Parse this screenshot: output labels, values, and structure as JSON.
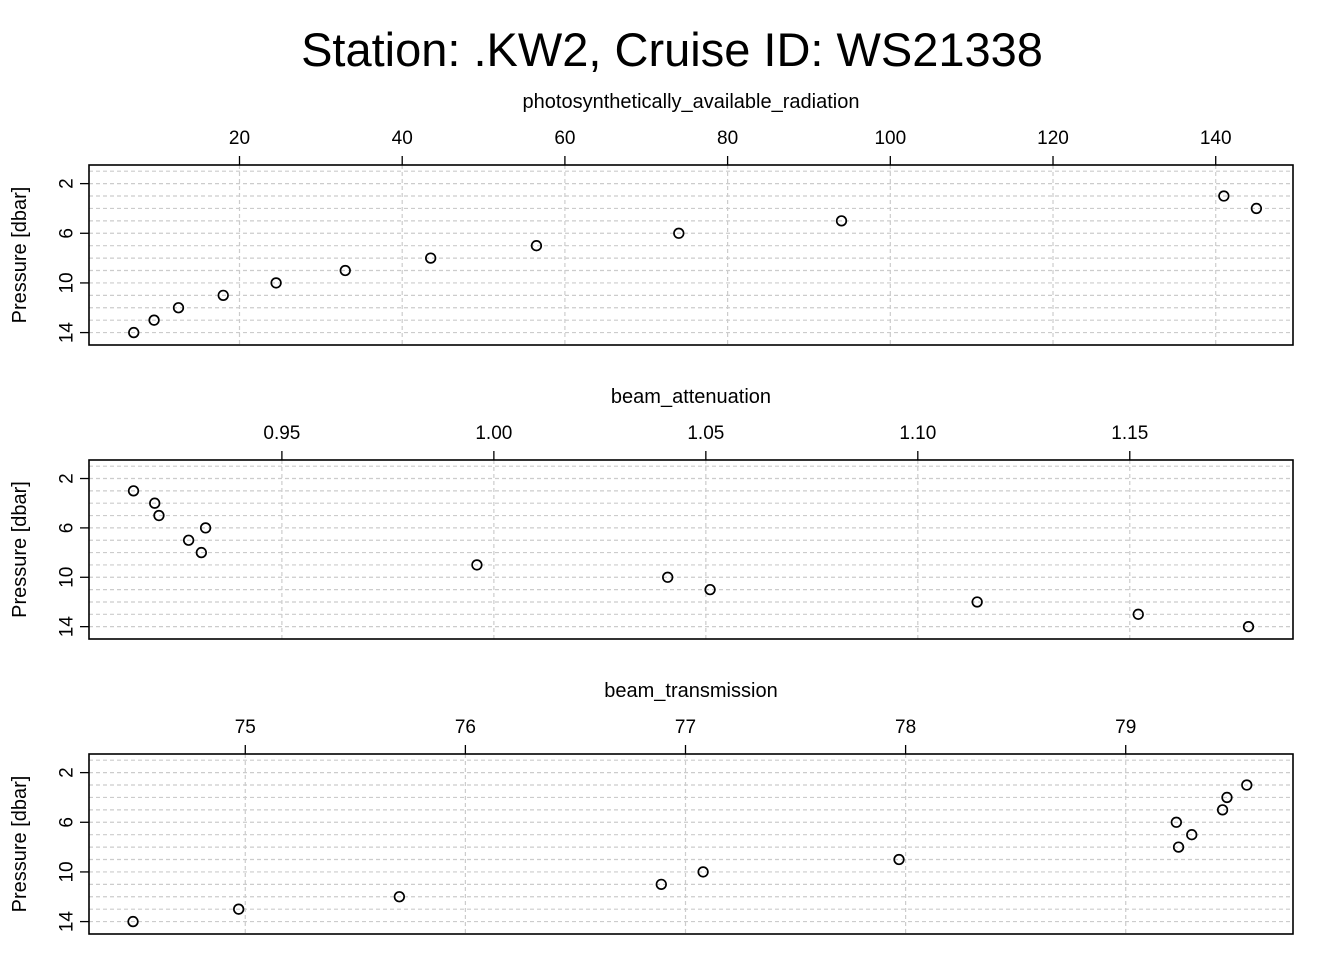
{
  "title": "Station: .KW2, Cruise ID: WS21338",
  "colors": {
    "points": "#000000",
    "grid": "#cccccc",
    "frame": "#000000"
  },
  "chart_data": [
    {
      "type": "scatter",
      "title": "photosynthetically_available_radiation",
      "ylabel": "Pressure [dbar]",
      "y_reversed": true,
      "xlim": [
        1.5,
        149.5
      ],
      "ylim": [
        0.5,
        15.0
      ],
      "x_ticks": [
        20,
        40,
        60,
        80,
        100,
        120,
        140
      ],
      "y_ticks": [
        2,
        6,
        10,
        14
      ],
      "grid": true,
      "points": [
        {
          "x": 141.0,
          "y": 3
        },
        {
          "x": 145.0,
          "y": 4
        },
        {
          "x": 94.0,
          "y": 5
        },
        {
          "x": 74.0,
          "y": 6
        },
        {
          "x": 56.5,
          "y": 7
        },
        {
          "x": 43.5,
          "y": 8
        },
        {
          "x": 33.0,
          "y": 9
        },
        {
          "x": 24.5,
          "y": 10
        },
        {
          "x": 18.0,
          "y": 11
        },
        {
          "x": 12.5,
          "y": 12
        },
        {
          "x": 9.5,
          "y": 13
        },
        {
          "x": 7.0,
          "y": 14
        }
      ]
    },
    {
      "type": "scatter",
      "title": "beam_attenuation",
      "ylabel": "Pressure [dbar]",
      "y_reversed": true,
      "xlim": [
        0.9045,
        1.1885
      ],
      "ylim": [
        0.5,
        15.0
      ],
      "x_ticks": [
        0.95,
        1.0,
        1.05,
        1.1,
        1.15
      ],
      "x_tick_labels": [
        "0.95",
        "1.00",
        "1.05",
        "1.10",
        "1.15"
      ],
      "y_ticks": [
        2,
        6,
        10,
        14
      ],
      "grid": true,
      "points": [
        {
          "x": 0.915,
          "y": 3
        },
        {
          "x": 0.92,
          "y": 4
        },
        {
          "x": 0.921,
          "y": 5
        },
        {
          "x": 0.932,
          "y": 6
        },
        {
          "x": 0.928,
          "y": 7
        },
        {
          "x": 0.931,
          "y": 8
        },
        {
          "x": 0.996,
          "y": 9
        },
        {
          "x": 1.041,
          "y": 10
        },
        {
          "x": 1.051,
          "y": 11
        },
        {
          "x": 1.114,
          "y": 12
        },
        {
          "x": 1.152,
          "y": 13
        },
        {
          "x": 1.178,
          "y": 14
        }
      ]
    },
    {
      "type": "scatter",
      "title": "beam_transmission",
      "ylabel": "Pressure [dbar]",
      "y_reversed": true,
      "xlim": [
        74.29,
        79.76
      ],
      "ylim": [
        0.5,
        15.0
      ],
      "x_ticks": [
        75,
        76,
        77,
        78,
        79
      ],
      "y_ticks": [
        2,
        6,
        10,
        14
      ],
      "grid": true,
      "points": [
        {
          "x": 79.55,
          "y": 3
        },
        {
          "x": 79.46,
          "y": 4
        },
        {
          "x": 79.44,
          "y": 5
        },
        {
          "x": 79.23,
          "y": 6
        },
        {
          "x": 79.3,
          "y": 7
        },
        {
          "x": 79.24,
          "y": 8
        },
        {
          "x": 77.97,
          "y": 9
        },
        {
          "x": 77.08,
          "y": 10
        },
        {
          "x": 76.89,
          "y": 11
        },
        {
          "x": 75.7,
          "y": 12
        },
        {
          "x": 74.97,
          "y": 13
        },
        {
          "x": 74.49,
          "y": 14
        }
      ]
    }
  ]
}
